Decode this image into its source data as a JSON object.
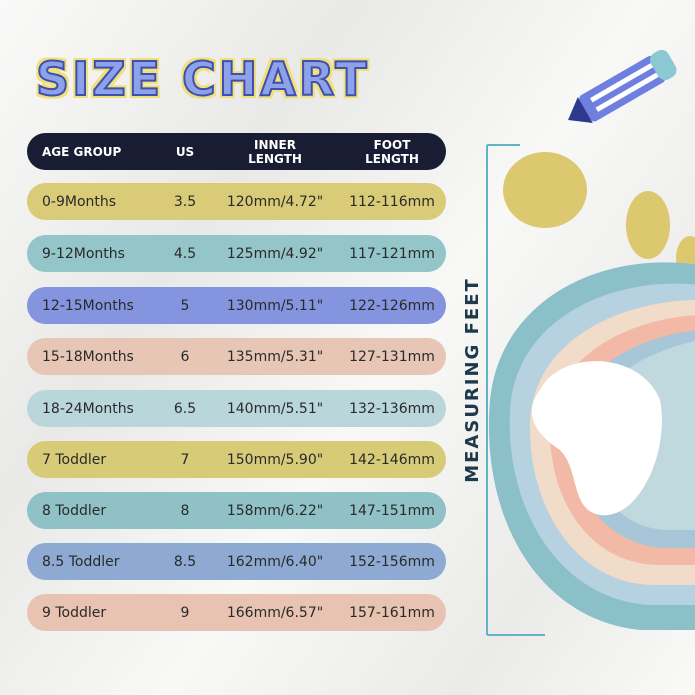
{
  "title": "SIZE CHART",
  "side_label": "MEASURING FEET",
  "table": {
    "headers": {
      "age_group": "AGE GROUP",
      "us": "US",
      "inner_1": "INNER",
      "inner_2": "LENGTH",
      "foot_1": "FOOT",
      "foot_2": "LENGTH"
    },
    "rows": [
      {
        "age": "0-9Months",
        "us": "3.5",
        "inner": "120mm/4.72\"",
        "foot": "112-116mm",
        "color": "#d9cb78"
      },
      {
        "age": "9-12Months",
        "us": "4.5",
        "inner": "125mm/4.92\"",
        "foot": "117-121mm",
        "color": "#93c5c9"
      },
      {
        "age": "12-15Months",
        "us": "5",
        "inner": "130mm/5.11\"",
        "foot": "122-126mm",
        "color": "#8494de"
      },
      {
        "age": "15-18Months",
        "us": "6",
        "inner": "135mm/5.31\"",
        "foot": "127-131mm",
        "color": "#e8c6b5"
      },
      {
        "age": "18-24Months",
        "us": "6.5",
        "inner": "140mm/5.51\"",
        "foot": "132-136mm",
        "color": "#b9d6da"
      },
      {
        "age": "7 Toddler",
        "us": "7",
        "inner": "150mm/5.90\"",
        "foot": "142-146mm",
        "color": "#d8cb78"
      },
      {
        "age": "8 Toddler",
        "us": "8",
        "inner": "158mm/6.22\"",
        "foot": "147-151mm",
        "color": "#8fc1c7"
      },
      {
        "age": "8.5 Toddler",
        "us": "8.5",
        "inner": "162mm/6.40\"",
        "foot": "152-156mm",
        "color": "#8eaad2"
      },
      {
        "age": "9 Toddler",
        "us": "9",
        "inner": "166mm/6.57\"",
        "foot": "157-161mm",
        "color": "#e8c3b2"
      }
    ]
  }
}
